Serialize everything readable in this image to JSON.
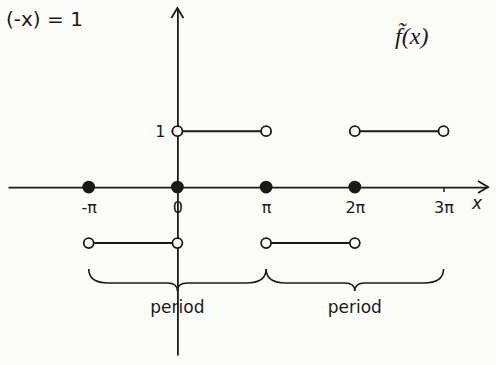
{
  "chart_data": {
    "type": "line",
    "title": "f̃(x)",
    "x_label": "x",
    "xlim": [
      -6,
      11
    ],
    "ylim": [
      -3,
      3.2
    ],
    "xticks": [
      {
        "value": -3.1416,
        "label": "-π"
      },
      0,
      {
        "value": 3.1416,
        "label": "π"
      },
      {
        "value": 6.2832,
        "label": "2π"
      },
      {
        "value": 9.4248,
        "label": "3π"
      }
    ],
    "yticks": [
      1
    ],
    "series": [
      {
        "type": "line",
        "marker": "open-circle",
        "color": "#1a1a1a",
        "x": [
          -3.1416,
          0,
          null,
          0,
          3.1416,
          null,
          3.1416,
          6.2832,
          null,
          6.2832,
          9.4248
        ],
        "values": [
          -1,
          -1,
          null,
          1,
          1,
          null,
          -1,
          -1,
          null,
          1,
          1
        ]
      },
      {
        "type": "scatter",
        "marker": "filled-circle",
        "color": "#1a1a1a",
        "x": [
          -3.1416,
          0,
          3.1416,
          6.2832
        ],
        "values": [
          0,
          0,
          0,
          0
        ]
      }
    ],
    "annotations": [
      {
        "text": "(-x) = 1"
      },
      {
        "text": "period",
        "x": [
          -3.1416,
          3.1416
        ]
      },
      {
        "text": "period",
        "x": [
          3.1416,
          9.4248
        ]
      }
    ]
  }
}
